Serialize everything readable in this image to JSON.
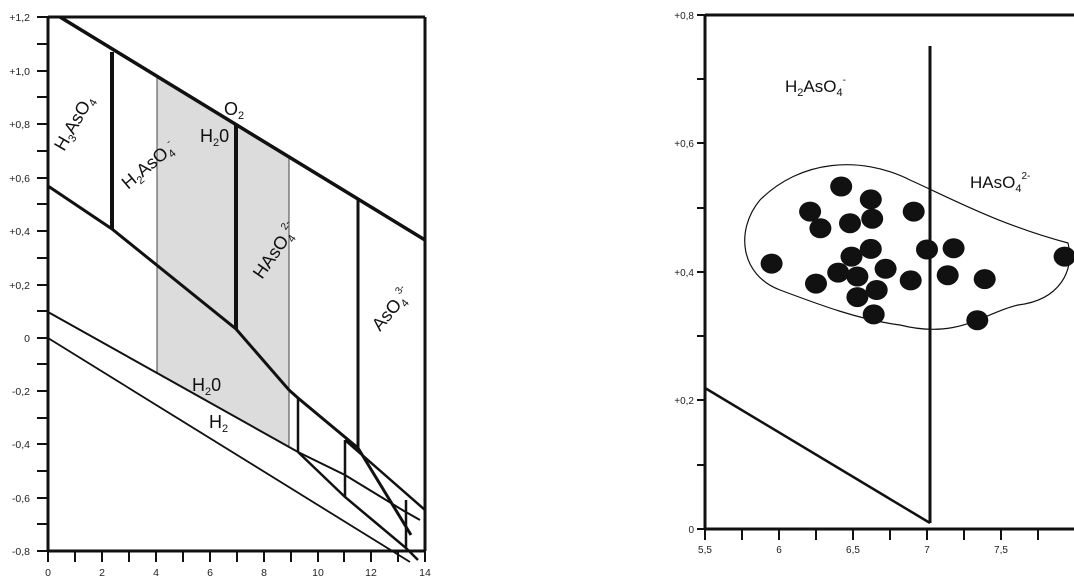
{
  "left_diagram": {
    "x_axis": {
      "range": [
        0,
        14
      ],
      "ticks": [
        "0",
        "2",
        "4",
        "6",
        "8",
        "10",
        "12",
        "14"
      ]
    },
    "y_axis": {
      "range": [
        -0.8,
        1.2
      ],
      "ticks": [
        "+1,2",
        "+1,0",
        "+0,8",
        "+0,6",
        "+0,4",
        "+0,2",
        "0",
        "-0,2",
        "-0,4",
        "-0,6",
        "-0,8"
      ]
    },
    "labels": {
      "h3aso4": {
        "main": "H",
        "sub1": "3",
        "mid": "AsO",
        "sub2": "4"
      },
      "h2aso4": {
        "main": "H",
        "sub1": "2",
        "mid": "AsO",
        "sub2": "4",
        "sup": "-"
      },
      "haso4": {
        "main": "HAsO",
        "sub": "4",
        "sup": "2-"
      },
      "aso4": {
        "main": "AsO",
        "sub": "4",
        "sup": "3-"
      },
      "o2": {
        "main": "O",
        "sub": "2"
      },
      "h2o_top": {
        "main": "H",
        "sub": "2",
        "rest": "0"
      },
      "h2o_bottom": {
        "main": "H",
        "sub": "2",
        "rest": "0"
      },
      "h2": {
        "main": "H",
        "sub": "2"
      }
    },
    "shaded_region_color": "#dcdcdc"
  },
  "right_diagram": {
    "x_axis": {
      "range": [
        5.5,
        8.0
      ],
      "ticks": [
        "5,5",
        "6",
        "6,5",
        "7",
        "7,5"
      ]
    },
    "y_axis": {
      "range": [
        0,
        0.8
      ],
      "ticks": [
        "+0,8",
        "+0,6",
        "+0,4",
        "+0,2",
        "0"
      ]
    },
    "labels": {
      "h2aso4": {
        "main": "H",
        "sub1": "2",
        "mid": "AsO",
        "sub2": "4",
        "sup": "-"
      },
      "haso4": {
        "main": "HAsO",
        "sub": "4",
        "sup": "2-"
      }
    },
    "points": [
      [
        5.95,
        0.413
      ],
      [
        6.25,
        0.382
      ],
      [
        6.21,
        0.494
      ],
      [
        6.28,
        0.468
      ],
      [
        6.42,
        0.533
      ],
      [
        6.4,
        0.399
      ],
      [
        6.48,
        0.476
      ],
      [
        6.49,
        0.424
      ],
      [
        6.53,
        0.393
      ],
      [
        6.53,
        0.361
      ],
      [
        6.62,
        0.513
      ],
      [
        6.63,
        0.483
      ],
      [
        6.62,
        0.436
      ],
      [
        6.66,
        0.372
      ],
      [
        6.64,
        0.334
      ],
      [
        6.72,
        0.405
      ],
      [
        6.89,
        0.387
      ],
      [
        6.91,
        0.494
      ],
      [
        7.0,
        0.435
      ],
      [
        7.14,
        0.395
      ],
      [
        7.18,
        0.437
      ],
      [
        7.34,
        0.325
      ],
      [
        7.39,
        0.389
      ],
      [
        7.93,
        0.424
      ]
    ]
  }
}
